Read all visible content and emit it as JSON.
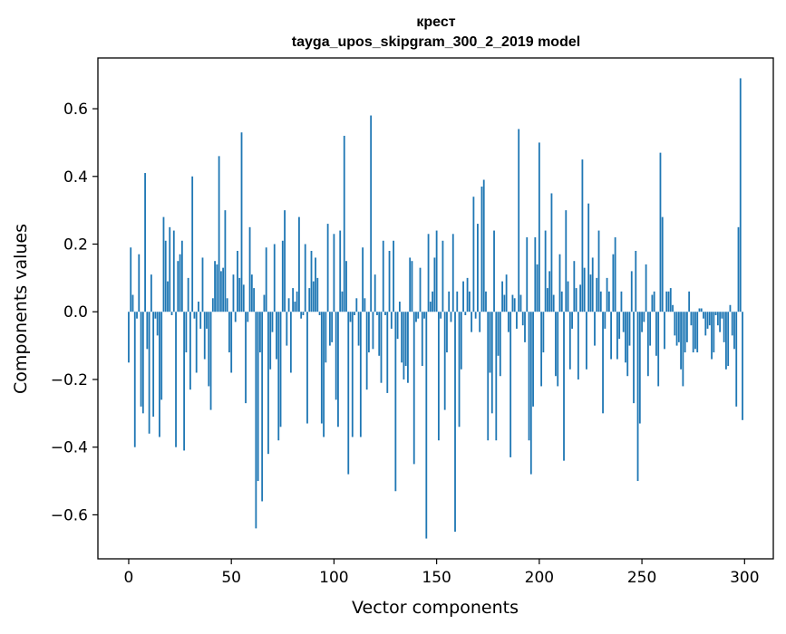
{
  "chart_data": {
    "type": "bar",
    "title": "крест",
    "subtitle": "tayga_upos_skipgram_300_2_2019 model",
    "xlabel": "Vector components",
    "ylabel": "Components values",
    "xlim": [
      -15,
      314
    ],
    "ylim": [
      -0.73,
      0.75
    ],
    "xticks": [
      0,
      50,
      100,
      150,
      200,
      250,
      300
    ],
    "yticks": [
      -0.6,
      -0.4,
      -0.2,
      0.0,
      0.2,
      0.4,
      0.6
    ],
    "ytick_labels": [
      "−0.6",
      "−0.4",
      "−0.2",
      "0.0",
      "0.2",
      "0.4",
      "0.6"
    ],
    "bar_color": "#1f77b4",
    "grid": false,
    "x": [
      0,
      1,
      2,
      3,
      4,
      5,
      6,
      7,
      8,
      9,
      10,
      11,
      12,
      13,
      14,
      15,
      16,
      17,
      18,
      19,
      20,
      21,
      22,
      23,
      24,
      25,
      26,
      27,
      28,
      29,
      30,
      31,
      32,
      33,
      34,
      35,
      36,
      37,
      38,
      39,
      40,
      41,
      42,
      43,
      44,
      45,
      46,
      47,
      48,
      49,
      50,
      51,
      52,
      53,
      54,
      55,
      56,
      57,
      58,
      59,
      60,
      61,
      62,
      63,
      64,
      65,
      66,
      67,
      68,
      69,
      70,
      71,
      72,
      73,
      74,
      75,
      76,
      77,
      78,
      79,
      80,
      81,
      82,
      83,
      84,
      85,
      86,
      87,
      88,
      89,
      90,
      91,
      92,
      93,
      94,
      95,
      96,
      97,
      98,
      99,
      100,
      101,
      102,
      103,
      104,
      105,
      106,
      107,
      108,
      109,
      110,
      111,
      112,
      113,
      114,
      115,
      116,
      117,
      118,
      119,
      120,
      121,
      122,
      123,
      124,
      125,
      126,
      127,
      128,
      129,
      130,
      131,
      132,
      133,
      134,
      135,
      136,
      137,
      138,
      139,
      140,
      141,
      142,
      143,
      144,
      145,
      146,
      147,
      148,
      149,
      150,
      151,
      152,
      153,
      154,
      155,
      156,
      157,
      158,
      159,
      160,
      161,
      162,
      163,
      164,
      165,
      166,
      167,
      168,
      169,
      170,
      171,
      172,
      173,
      174,
      175,
      176,
      177,
      178,
      179,
      180,
      181,
      182,
      183,
      184,
      185,
      186,
      187,
      188,
      189,
      190,
      191,
      192,
      193,
      194,
      195,
      196,
      197,
      198,
      199,
      200,
      201,
      202,
      203,
      204,
      205,
      206,
      207,
      208,
      209,
      210,
      211,
      212,
      213,
      214,
      215,
      216,
      217,
      218,
      219,
      220,
      221,
      222,
      223,
      224,
      225,
      226,
      227,
      228,
      229,
      230,
      231,
      232,
      233,
      234,
      235,
      236,
      237,
      238,
      239,
      240,
      241,
      242,
      243,
      244,
      245,
      246,
      247,
      248,
      249,
      250,
      251,
      252,
      253,
      254,
      255,
      256,
      257,
      258,
      259,
      260,
      261,
      262,
      263,
      264,
      265,
      266,
      267,
      268,
      269,
      270,
      271,
      272,
      273,
      274,
      275,
      276,
      277,
      278,
      279,
      280,
      281,
      282,
      283,
      284,
      285,
      286,
      287,
      288,
      289,
      290,
      291,
      292,
      293,
      294,
      295,
      296,
      297,
      298,
      299
    ],
    "values": [
      -0.15,
      0.19,
      0.05,
      -0.4,
      -0.02,
      0.17,
      -0.28,
      -0.3,
      0.41,
      -0.11,
      -0.36,
      0.11,
      -0.31,
      -0.02,
      -0.07,
      -0.37,
      -0.26,
      0.28,
      0.21,
      0.09,
      0.25,
      -0.01,
      0.24,
      -0.4,
      0.15,
      0.17,
      0.21,
      -0.41,
      -0.12,
      0.1,
      -0.23,
      0.4,
      -0.02,
      -0.18,
      0.03,
      -0.05,
      0.16,
      -0.14,
      -0.05,
      -0.22,
      -0.29,
      0.04,
      0.15,
      0.14,
      0.46,
      0.12,
      0.13,
      0.3,
      0.04,
      -0.12,
      -0.18,
      0.11,
      -0.03,
      0.18,
      0.1,
      0.53,
      0.08,
      -0.27,
      -0.03,
      0.25,
      0.11,
      0.07,
      -0.64,
      -0.5,
      -0.12,
      -0.56,
      0.05,
      0.19,
      -0.42,
      -0.17,
      -0.06,
      0.2,
      -0.14,
      -0.38,
      -0.34,
      0.21,
      0.3,
      -0.1,
      0.04,
      -0.18,
      0.07,
      0.03,
      0.06,
      0.28,
      -0.02,
      -0.01,
      0.2,
      -0.33,
      0.07,
      0.18,
      0.09,
      0.16,
      0.1,
      -0.01,
      -0.33,
      -0.37,
      -0.15,
      0.26,
      -0.1,
      -0.09,
      0.23,
      -0.26,
      -0.34,
      0.24,
      0.06,
      0.52,
      0.15,
      -0.48,
      -0.03,
      -0.37,
      -0.01,
      0.04,
      -0.1,
      -0.37,
      0.19,
      0.04,
      -0.23,
      -0.12,
      0.58,
      -0.11,
      0.11,
      -0.01,
      -0.13,
      -0.21,
      0.21,
      -0.01,
      -0.24,
      0.18,
      -0.05,
      0.21,
      -0.53,
      -0.08,
      0.03,
      -0.15,
      -0.2,
      -0.16,
      -0.21,
      0.16,
      0.15,
      -0.45,
      -0.03,
      -0.02,
      0.13,
      -0.16,
      -0.02,
      -0.67,
      0.23,
      0.03,
      0.06,
      0.16,
      0.24,
      -0.38,
      -0.02,
      0.21,
      -0.29,
      -0.12,
      0.06,
      -0.03,
      0.23,
      -0.65,
      0.06,
      -0.34,
      -0.17,
      0.09,
      -0.01,
      0.1,
      0.06,
      -0.06,
      0.34,
      -0.02,
      0.26,
      -0.06,
      0.37,
      0.39,
      0.06,
      -0.38,
      -0.18,
      -0.3,
      0.24,
      -0.38,
      -0.13,
      -0.19,
      0.09,
      0.05,
      0.11,
      -0.06,
      -0.43,
      0.05,
      0.04,
      -0.05,
      0.54,
      0.05,
      -0.04,
      -0.09,
      0.22,
      -0.38,
      -0.48,
      -0.28,
      0.22,
      0.14,
      0.5,
      -0.22,
      -0.12,
      0.24,
      0.07,
      0.12,
      0.35,
      0.05,
      -0.19,
      -0.22,
      0.17,
      0.06,
      -0.44,
      0.3,
      0.09,
      -0.17,
      -0.05,
      0.15,
      0.07,
      -0.2,
      0.08,
      0.45,
      0.13,
      -0.17,
      0.32,
      0.11,
      0.16,
      -0.1,
      0.1,
      0.24,
      0.06,
      -0.3,
      -0.05,
      0.1,
      0.06,
      -0.14,
      0.17,
      0.22,
      -0.14,
      -0.08,
      0.06,
      -0.06,
      -0.15,
      -0.19,
      -0.1,
      0.12,
      -0.27,
      0.18,
      -0.5,
      -0.33,
      -0.06,
      -0.03,
      0.14,
      -0.19,
      -0.1,
      0.05,
      0.06,
      -0.13,
      -0.22,
      0.47,
      0.28,
      -0.11,
      0.06,
      0.06,
      0.07,
      0.02,
      -0.07,
      -0.1,
      -0.09,
      -0.17,
      -0.22,
      -0.12,
      -0.09,
      0.06,
      -0.04,
      -0.12,
      -0.11,
      -0.12,
      0.01,
      0.01,
      -0.02,
      -0.07,
      -0.05,
      -0.04,
      -0.14,
      -0.12,
      -0.01,
      -0.04,
      -0.06,
      -0.02,
      -0.09,
      -0.17,
      -0.16,
      0.02,
      -0.07,
      -0.11,
      -0.28,
      0.25,
      0.69,
      -0.32
    ]
  }
}
